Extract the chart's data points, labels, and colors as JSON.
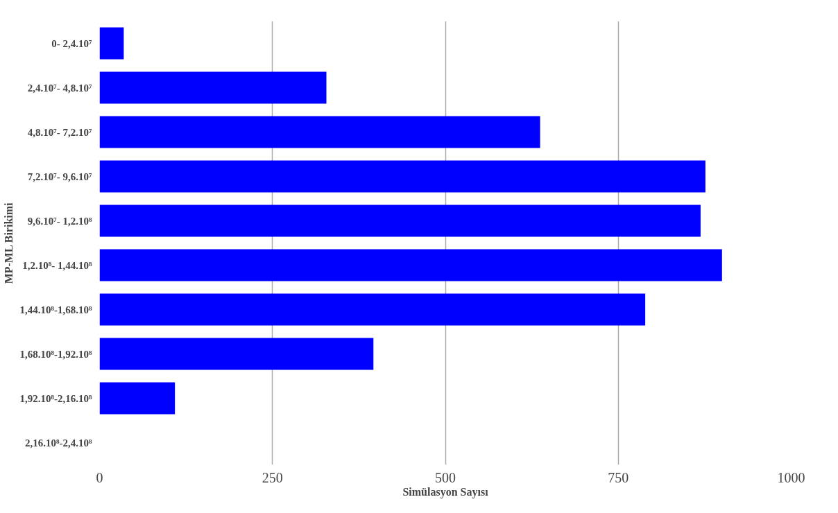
{
  "chart_data": {
    "type": "bar",
    "orientation": "horizontal",
    "xlabel": "Simülasyon Sayısı",
    "ylabel": "MP-ML Birikimi",
    "categories": [
      "0- 2,4.10⁷",
      "2,4.10⁷- 4,8.10⁷",
      "4,8.10⁷- 7,2.10⁷",
      "7,2.10⁷- 9,6.10⁷",
      "9,6.10⁷- 1,2.10⁸",
      "1,2.10⁸- 1,44.10⁸",
      "1,44.10⁸-1,68.10⁸",
      "1,68.10⁸-1,92.10⁸",
      "1,92.10⁸-2,16.10⁸",
      "2,16.10⁸-2,4.10⁸"
    ],
    "values": [
      35,
      328,
      637,
      876,
      869,
      900,
      789,
      396,
      109,
      0
    ],
    "color": "#0000ff",
    "xlim": [
      0,
      1000
    ],
    "xticks": [
      0,
      250,
      500,
      750,
      1000
    ],
    "grid": "x"
  }
}
